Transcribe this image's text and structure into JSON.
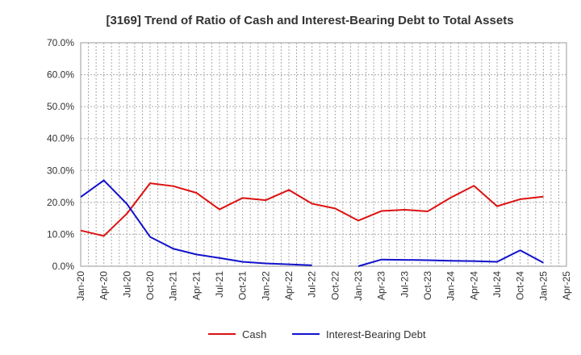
{
  "chart_data": {
    "type": "line",
    "title": "[3169]  Trend of Ratio of Cash and Interest-Bearing Debt to Total Assets",
    "xlabel": "",
    "ylabel": "",
    "ylim": [
      0,
      70
    ],
    "y_ticks": [
      "0.0%",
      "10.0%",
      "20.0%",
      "30.0%",
      "40.0%",
      "50.0%",
      "60.0%",
      "70.0%"
    ],
    "y_tick_values": [
      0,
      10,
      20,
      30,
      40,
      50,
      60,
      70
    ],
    "categories": [
      "Jan-20",
      "Apr-20",
      "Jul-20",
      "Oct-20",
      "Jan-21",
      "Apr-21",
      "Jul-21",
      "Oct-21",
      "Jan-22",
      "Apr-22",
      "Jul-22",
      "Oct-22",
      "Jan-23",
      "Apr-23",
      "Jul-23",
      "Oct-23",
      "Jan-24",
      "Apr-24",
      "Jul-24",
      "Oct-24",
      "Jan-25",
      "Apr-25"
    ],
    "grid": true,
    "legend_position": "bottom-center",
    "series": [
      {
        "name": "Cash",
        "color": "#dd1111",
        "values": [
          11.2,
          9.5,
          16.5,
          26.0,
          25.1,
          23.0,
          17.8,
          21.4,
          20.7,
          23.9,
          19.6,
          18.1,
          14.3,
          17.3,
          17.7,
          17.2,
          21.5,
          25.2,
          18.8,
          21.0,
          21.8,
          null
        ]
      },
      {
        "name": "Interest-Bearing Debt",
        "color": "#1111cc",
        "values": [
          21.7,
          26.9,
          19.5,
          9.2,
          5.5,
          3.7,
          2.6,
          1.4,
          0.9,
          0.6,
          0.3,
          null,
          0.0,
          2.1,
          2.0,
          1.9,
          1.7,
          1.6,
          1.4,
          5.0,
          1.1,
          null
        ]
      }
    ]
  }
}
